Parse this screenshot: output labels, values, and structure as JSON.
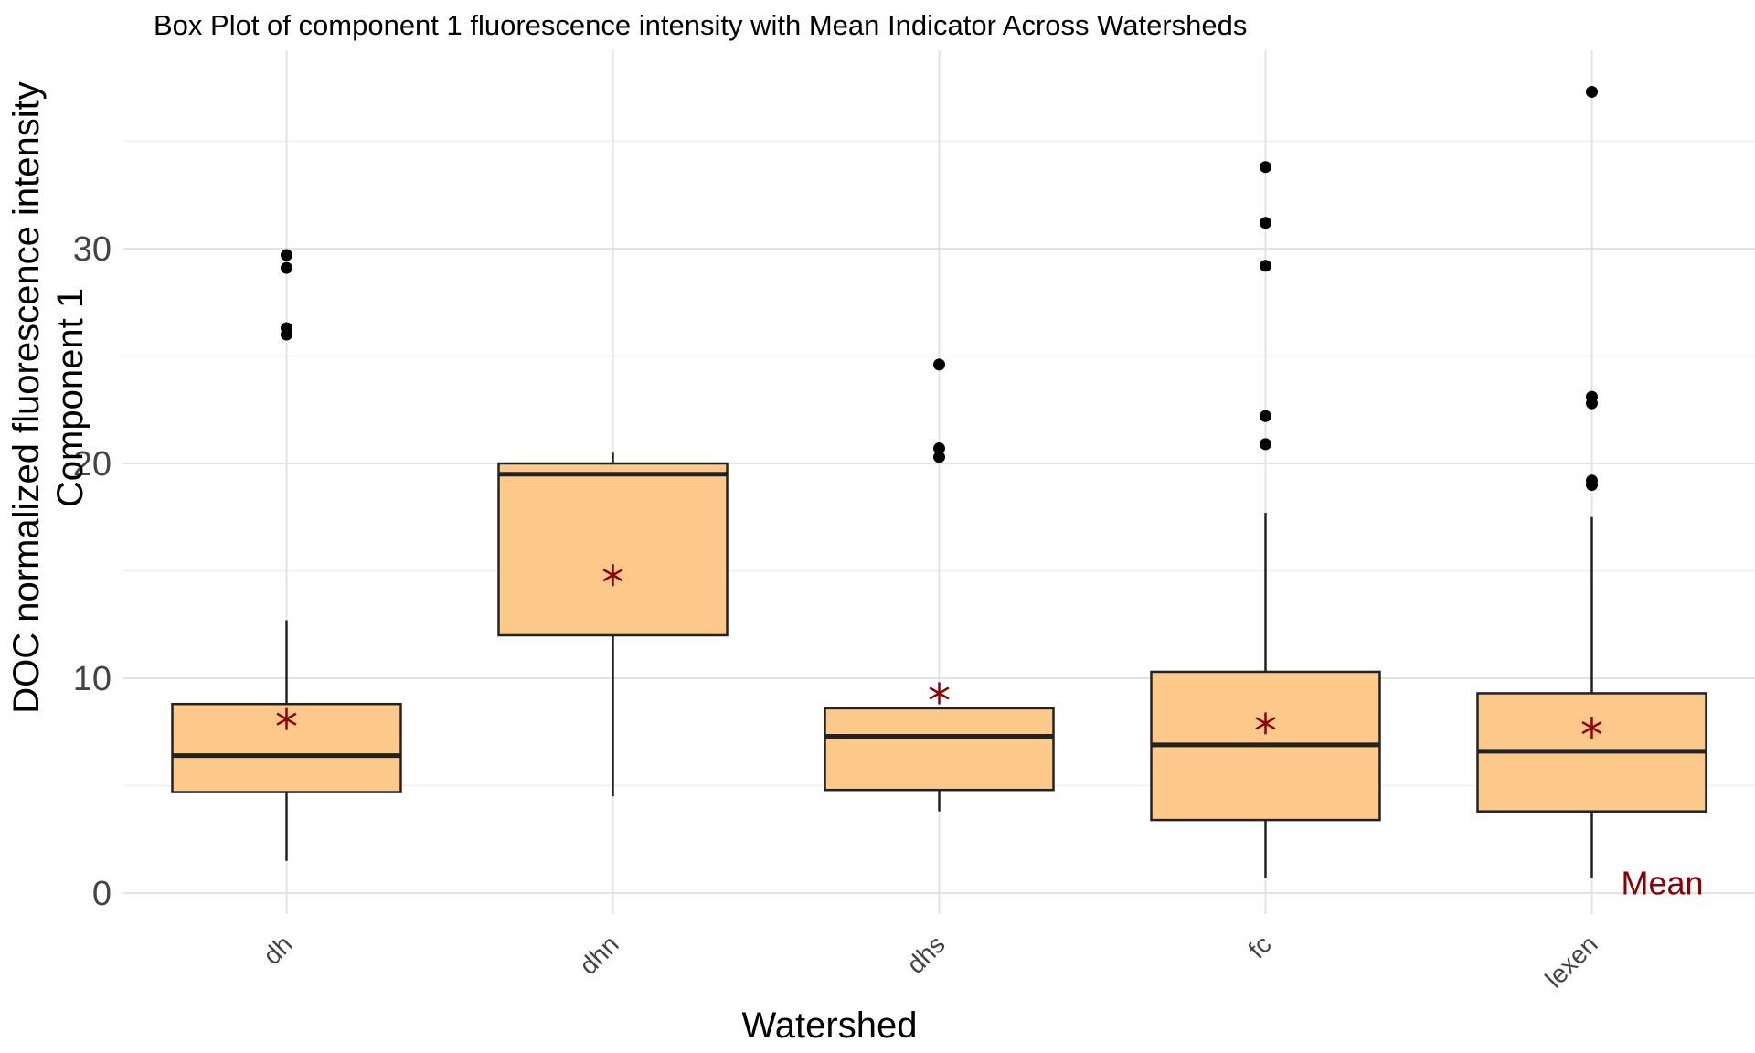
{
  "chart_data": {
    "type": "box",
    "title": "Box Plot of component 1 fluorescence intensity with Mean Indicator Across Watersheds",
    "xlabel": "Watershed",
    "ylabel_lines": [
      "DOC normalized fluorescence intensity",
      "Component 1"
    ],
    "ylim": [
      -1,
      39
    ],
    "yticks": [
      0,
      10,
      20,
      30
    ],
    "categories": [
      "dh",
      "dhn",
      "dhs",
      "fc",
      "lexen"
    ],
    "boxes": [
      {
        "category": "dh",
        "q1": 4.7,
        "median": 6.4,
        "q3": 8.8,
        "whisker_low": 1.5,
        "whisker_high": 12.7,
        "mean": 8.1,
        "outliers": [
          29.7,
          29.1,
          26.3,
          26.0
        ]
      },
      {
        "category": "dhn",
        "q1": 12.0,
        "median": 19.5,
        "q3": 20.0,
        "whisker_low": 4.5,
        "whisker_high": 20.5,
        "mean": 14.8,
        "outliers": []
      },
      {
        "category": "dhs",
        "q1": 4.8,
        "median": 7.3,
        "q3": 8.6,
        "whisker_low": 3.8,
        "whisker_high": 8.6,
        "mean": 9.3,
        "outliers": [
          24.6,
          20.7,
          20.3
        ]
      },
      {
        "category": "fc",
        "q1": 3.4,
        "median": 6.9,
        "q3": 10.3,
        "whisker_low": 0.7,
        "whisker_high": 17.7,
        "mean": 7.9,
        "outliers": [
          33.8,
          31.2,
          29.2,
          22.2,
          20.9
        ]
      },
      {
        "category": "lexen",
        "q1": 3.8,
        "median": 6.6,
        "q3": 9.3,
        "whisker_low": 0.7,
        "whisker_high": 17.5,
        "mean": 7.7,
        "outliers": [
          37.3,
          23.1,
          22.8,
          19.2,
          19.0
        ]
      }
    ],
    "annotation": {
      "text": "Mean",
      "x_category": "lexen",
      "y": 0.5
    },
    "box_fill": "#fdc98b",
    "box_stroke": "#222222",
    "mean_color": "#8b0000",
    "outlier_color": "#000000",
    "grid": true,
    "legend": "none"
  }
}
